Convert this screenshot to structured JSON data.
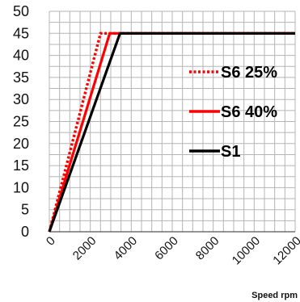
{
  "chart_data": {
    "type": "line",
    "xlabel": "Speed rpm",
    "ylabel": "",
    "xlim": [
      0,
      12000
    ],
    "ylim": [
      0,
      50
    ],
    "x_ticks": [
      0,
      2000,
      4000,
      6000,
      8000,
      10000,
      12000
    ],
    "y_ticks": [
      0,
      5,
      10,
      15,
      20,
      25,
      30,
      35,
      40,
      45,
      50
    ],
    "x_tick_labels": [
      "0",
      "2000",
      "4000",
      "6000",
      "8000",
      "10000",
      "12000"
    ],
    "y_tick_labels": [
      "0",
      "5",
      "10",
      "15",
      "20",
      "25",
      "30",
      "35",
      "40",
      "45",
      "50"
    ],
    "grid": true,
    "legend_position": "right",
    "series": [
      {
        "name": "S6 25%",
        "color": "#ff0000",
        "style": "dotted",
        "points": [
          [
            0,
            0
          ],
          [
            2500,
            45
          ],
          [
            12000,
            45
          ]
        ]
      },
      {
        "name": "S6 40%",
        "color": "#ff0000",
        "style": "solid",
        "points": [
          [
            0,
            0
          ],
          [
            2950,
            45
          ],
          [
            12000,
            45
          ]
        ]
      },
      {
        "name": "S1",
        "color": "#000000",
        "style": "solid",
        "points": [
          [
            0,
            0
          ],
          [
            3450,
            45
          ],
          [
            12000,
            45
          ]
        ]
      }
    ]
  }
}
